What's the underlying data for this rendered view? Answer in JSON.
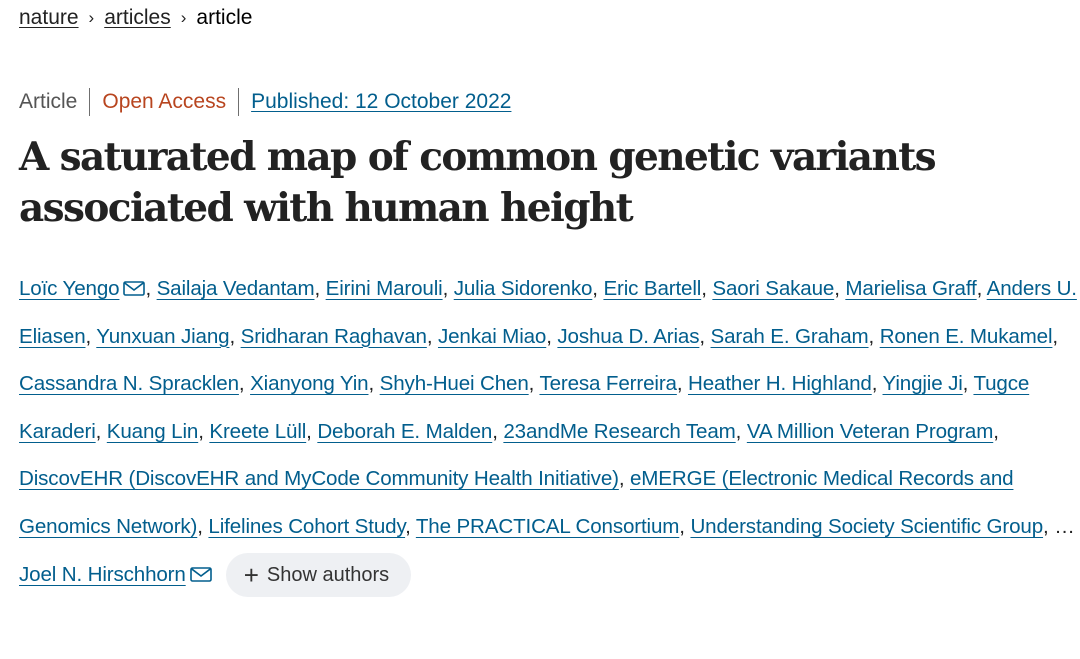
{
  "breadcrumb": {
    "items": [
      "nature",
      "articles"
    ],
    "current": "article",
    "separator": "›"
  },
  "meta": {
    "type": "Article",
    "access": "Open Access",
    "published": "Published: 12 October 2022"
  },
  "title": "A saturated map of common genetic variants associated with human height",
  "authors": [
    {
      "name": "Loïc Yengo",
      "email": true
    },
    {
      "name": "Sailaja Vedantam"
    },
    {
      "name": "Eirini Marouli"
    },
    {
      "name": "Julia Sidorenko"
    },
    {
      "name": "Eric Bartell"
    },
    {
      "name": "Saori Sakaue"
    },
    {
      "name": "Marielisa Graff"
    },
    {
      "name": "Anders U. Eliasen"
    },
    {
      "name": "Yunxuan Jiang"
    },
    {
      "name": "Sridharan Raghavan"
    },
    {
      "name": "Jenkai Miao"
    },
    {
      "name": "Joshua D. Arias"
    },
    {
      "name": "Sarah E. Graham"
    },
    {
      "name": "Ronen E. Mukamel"
    },
    {
      "name": "Cassandra N. Spracklen"
    },
    {
      "name": "Xianyong Yin"
    },
    {
      "name": "Shyh-Huei Chen"
    },
    {
      "name": "Teresa Ferreira"
    },
    {
      "name": "Heather H. Highland"
    },
    {
      "name": "Yingjie Ji"
    },
    {
      "name": "Tugce Karaderi"
    },
    {
      "name": "Kuang Lin"
    },
    {
      "name": "Kreete Lüll"
    },
    {
      "name": "Deborah E. Malden"
    },
    {
      "name": "23andMe Research Team"
    },
    {
      "name": "VA Million Veteran Program"
    },
    {
      "name": "DiscovEHR (DiscovEHR and MyCode Community Health Initiative)"
    },
    {
      "name": "eMERGE (Electronic Medical Records and Genomics Network)"
    },
    {
      "name": "Lifelines Cohort Study"
    },
    {
      "name": "The PRACTICAL Consortium"
    },
    {
      "name": "Understanding Society Scientific Group"
    }
  ],
  "ellipsis": "…",
  "last_author": {
    "name": "Joel N. Hirschhorn",
    "email": true
  },
  "show_authors": {
    "label": "Show authors",
    "icon": "plus-icon"
  },
  "colors": {
    "link": "#025e8d",
    "open_access": "#b8451f",
    "text": "#222222",
    "button_bg": "#eef0f3"
  }
}
